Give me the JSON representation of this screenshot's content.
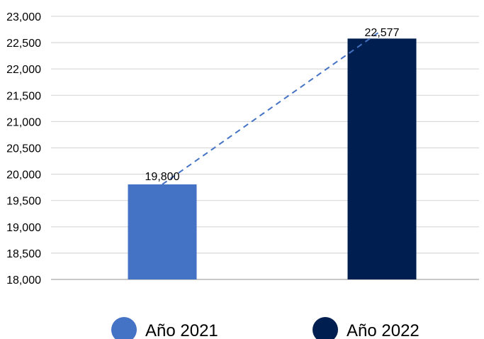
{
  "chart_data": {
    "type": "bar",
    "categories": [
      "Año 2021",
      "Año 2022"
    ],
    "values": [
      19800,
      22577
    ],
    "data_labels": [
      "19,800",
      "22,577"
    ],
    "colors": [
      "#4472c4",
      "#001f50"
    ],
    "ylim": [
      18000,
      23000
    ],
    "y_ticks": [
      18000,
      18500,
      19000,
      19500,
      20000,
      20500,
      21000,
      21500,
      22000,
      22500,
      23000
    ],
    "y_tick_labels": [
      "18,000",
      "18,500",
      "19,000",
      "19,500",
      "20,000",
      "20,500",
      "21,000",
      "21,500",
      "22,000",
      "22,500",
      "23,000"
    ],
    "grid": true,
    "trendline": {
      "style": "dashed",
      "color": "#4472c4"
    },
    "legend": {
      "position": "bottom"
    }
  }
}
